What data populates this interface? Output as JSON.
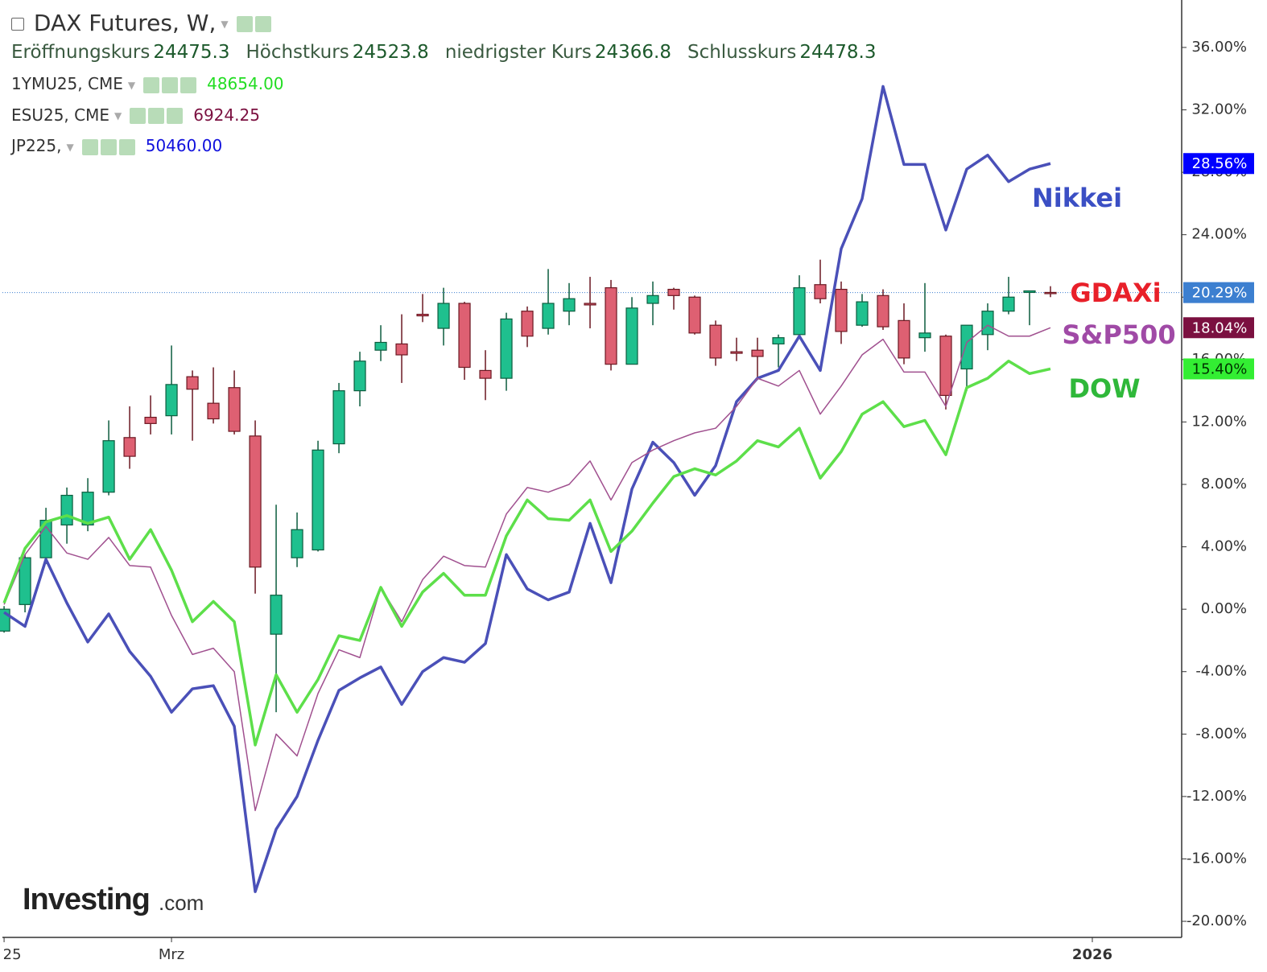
{
  "header": {
    "title": "DAX Futures, W,",
    "ohlc": [
      {
        "label": "Eröffnungskurs",
        "value": "24475.3"
      },
      {
        "label": "Höchstkurs",
        "value": "24523.8"
      },
      {
        "label": "niedrigster Kurs",
        "value": "24366.8"
      },
      {
        "label": "Schlusskurs",
        "value": "24478.3"
      }
    ],
    "overlays": [
      {
        "name": "1YMU25, CME",
        "value": "48654.00",
        "color": "#22dd22"
      },
      {
        "name": "ESU25, CME",
        "value": "6924.25",
        "color": "#7b1040"
      },
      {
        "name": "JP225,",
        "value": "50460.00",
        "color": "#1010dd"
      }
    ]
  },
  "logo": {
    "brand": "Investing",
    "suffix": ".com"
  },
  "chart_data": {
    "type": "candlestick",
    "x": [
      0,
      1,
      2,
      3,
      4,
      5,
      6,
      7,
      8,
      9,
      10,
      11,
      12,
      13,
      14,
      15,
      16,
      17,
      18,
      19,
      20,
      21,
      22,
      23,
      24,
      25,
      26,
      27,
      28,
      29,
      30,
      31,
      32,
      33,
      34,
      35,
      36,
      37,
      38,
      39,
      40,
      41,
      42,
      43,
      44,
      45,
      46,
      47,
      48,
      49,
      50
    ],
    "xlim": [
      -0.08,
      56.27
    ],
    "xticks": [
      {
        "value": 0,
        "label": "25"
      },
      {
        "value": 8,
        "label": "Mrz"
      },
      {
        "value": 52,
        "label": "2026"
      }
    ],
    "ylim": [
      -21.03,
      39.04
    ],
    "yticks": [
      {
        "value": -20,
        "label": "-20.00%"
      },
      {
        "value": -16,
        "label": "-16.00%"
      },
      {
        "value": -12,
        "label": "-12.00%"
      },
      {
        "value": -8,
        "label": "-8.00%"
      },
      {
        "value": -4,
        "label": "-4.00%"
      },
      {
        "value": 0,
        "label": "0.00%"
      },
      {
        "value": 4,
        "label": "4.00%"
      },
      {
        "value": 8,
        "label": "8.00%"
      },
      {
        "value": 12,
        "label": "12.00%"
      },
      {
        "value": 16,
        "label": "16.00%"
      },
      {
        "value": 20,
        "label": "20.00%"
      },
      {
        "value": 24,
        "label": "24.00%"
      },
      {
        "value": 28,
        "label": "28.00%"
      },
      {
        "value": 32,
        "label": "32.00%"
      },
      {
        "value": 36,
        "label": "36.00%"
      }
    ],
    "candles": {
      "name": "GDAXi",
      "name_color": "#e8202a",
      "color_up": "#1fc08e",
      "color_down": "#de6072",
      "label_color": "#3c7fd0",
      "open": [
        -1.4,
        0.3,
        3.3,
        5.4,
        5.4,
        7.5,
        11.0,
        12.3,
        12.4,
        14.9,
        13.2,
        14.2,
        11.1,
        -1.6,
        3.3,
        3.8,
        10.6,
        14.0,
        16.6,
        17.0,
        18.9,
        18.0,
        19.6,
        15.3,
        14.8,
        19.1,
        18.0,
        19.1,
        19.6,
        20.6,
        15.7,
        19.6,
        20.5,
        20.0,
        18.2,
        16.5,
        16.6,
        17.0,
        17.6,
        20.8,
        20.5,
        18.2,
        20.1,
        18.5,
        17.4,
        17.5,
        15.4,
        17.6,
        19.1,
        20.3,
        20.3
      ],
      "high": [
        0.2,
        3.5,
        6.5,
        7.8,
        8.4,
        12.1,
        13.0,
        13.7,
        16.9,
        15.3,
        15.5,
        15.3,
        12.1,
        6.7,
        6.2,
        10.8,
        14.5,
        16.5,
        18.2,
        18.9,
        20.2,
        20.6,
        19.7,
        16.6,
        19.0,
        19.4,
        21.8,
        20.9,
        21.3,
        21.1,
        20.0,
        21.0,
        20.6,
        20.1,
        18.5,
        17.4,
        17.4,
        17.6,
        21.4,
        22.4,
        21.0,
        20.2,
        20.5,
        19.6,
        20.9,
        17.6,
        18.2,
        19.6,
        21.3,
        20.4,
        20.7
      ],
      "low": [
        -1.5,
        -0.2,
        2.9,
        4.2,
        5.0,
        7.3,
        9.0,
        11.2,
        11.2,
        10.8,
        11.9,
        11.2,
        1.0,
        -6.6,
        2.7,
        3.7,
        10.0,
        13.0,
        15.9,
        14.5,
        18.4,
        16.9,
        14.7,
        13.4,
        14.0,
        16.8,
        17.6,
        18.2,
        18.0,
        15.3,
        15.7,
        18.2,
        19.2,
        17.6,
        15.6,
        15.9,
        14.8,
        15.5,
        17.4,
        19.6,
        17.0,
        18.1,
        17.9,
        15.7,
        16.5,
        12.8,
        14.0,
        16.6,
        18.9,
        18.2,
        20.0
      ],
      "close": [
        0.0,
        3.3,
        5.7,
        7.3,
        7.5,
        10.8,
        9.8,
        11.9,
        14.4,
        14.1,
        12.2,
        11.4,
        2.7,
        0.9,
        5.1,
        10.2,
        14.0,
        15.9,
        17.1,
        16.3,
        18.8,
        19.6,
        15.5,
        14.8,
        18.6,
        17.5,
        19.6,
        19.9,
        19.5,
        15.7,
        19.3,
        20.1,
        20.1,
        17.7,
        16.1,
        16.4,
        16.2,
        17.4,
        20.6,
        19.9,
        17.8,
        19.7,
        18.1,
        16.1,
        17.7,
        13.7,
        18.2,
        19.1,
        20.0,
        20.4,
        20.29
      ],
      "value_labels": [
        null,
        null,
        null,
        null,
        null,
        null,
        null,
        null,
        null,
        null,
        null,
        null,
        null,
        null,
        null,
        null,
        null,
        null,
        null,
        null,
        null,
        null,
        null,
        null,
        null,
        null,
        null,
        null,
        null,
        null,
        null,
        null,
        null,
        null,
        null,
        null,
        null,
        null,
        null,
        null,
        null,
        null,
        null,
        null,
        null,
        null,
        null,
        null,
        null,
        null,
        "20.29%"
      ]
    },
    "series": [
      {
        "name": "Nikkei",
        "color": "#4a50b8",
        "name_color": "#3b4fc4",
        "label_color": "#0000ff",
        "width": 3.5,
        "values": [
          -0.2,
          -1.1,
          3.2,
          0.4,
          -2.1,
          -0.3,
          -2.7,
          -4.3,
          -6.6,
          -5.1,
          -4.9,
          -7.5,
          -18.1,
          -14.1,
          -12.0,
          -8.4,
          -5.2,
          -4.4,
          -3.7,
          -6.1,
          -4.0,
          -3.1,
          -3.4,
          -2.2,
          3.5,
          1.3,
          0.6,
          1.1,
          5.5,
          1.7,
          7.7,
          10.7,
          9.4,
          7.3,
          9.2,
          13.3,
          14.8,
          15.3,
          17.5,
          15.3,
          23.1,
          26.3,
          33.5,
          28.5,
          28.5,
          24.3,
          28.2,
          29.1,
          27.4,
          28.2,
          28.56
        ],
        "value_labels": [
          null,
          null,
          null,
          null,
          null,
          null,
          null,
          null,
          null,
          null,
          null,
          null,
          null,
          null,
          null,
          null,
          null,
          null,
          null,
          null,
          null,
          null,
          null,
          null,
          null,
          null,
          null,
          null,
          null,
          null,
          null,
          null,
          null,
          null,
          null,
          null,
          null,
          null,
          null,
          null,
          null,
          null,
          null,
          null,
          null,
          null,
          null,
          null,
          null,
          null,
          "28.56%"
        ]
      },
      {
        "name": "S&P500",
        "color": "#a0508f",
        "name_color": "#a04aa6",
        "label_color": "#7b1040",
        "width": 1.5,
        "values": [
          0.3,
          3.5,
          5.3,
          3.6,
          3.2,
          4.6,
          2.8,
          2.7,
          -0.4,
          -2.9,
          -2.5,
          -4.0,
          -12.9,
          -8.0,
          -9.4,
          -5.4,
          -2.6,
          -3.1,
          1.4,
          -0.8,
          1.9,
          3.4,
          2.8,
          2.7,
          6.1,
          7.8,
          7.5,
          8.0,
          9.5,
          7.0,
          9.4,
          10.2,
          10.8,
          11.3,
          11.6,
          13.0,
          14.8,
          14.3,
          15.3,
          12.5,
          14.3,
          16.3,
          17.3,
          15.2,
          15.2,
          13.0,
          17.1,
          18.2,
          17.5,
          17.5,
          18.04
        ],
        "value_labels": [
          null,
          null,
          null,
          null,
          null,
          null,
          null,
          null,
          null,
          null,
          null,
          null,
          null,
          null,
          null,
          null,
          null,
          null,
          null,
          null,
          null,
          null,
          null,
          null,
          null,
          null,
          null,
          null,
          null,
          null,
          null,
          null,
          null,
          null,
          null,
          null,
          null,
          null,
          null,
          null,
          null,
          null,
          null,
          null,
          null,
          null,
          null,
          null,
          null,
          null,
          "18.04%"
        ]
      },
      {
        "name": "DOW",
        "color": "#5ddf4a",
        "name_color": "#2fb83a",
        "label_color": "#33ee33",
        "width": 3.5,
        "values": [
          0.4,
          3.9,
          5.6,
          6.0,
          5.5,
          5.9,
          3.2,
          5.1,
          2.5,
          -0.8,
          0.5,
          -0.8,
          -8.7,
          -4.2,
          -6.6,
          -4.5,
          -1.7,
          -2.0,
          1.4,
          -1.1,
          1.1,
          2.3,
          0.9,
          0.9,
          4.7,
          7.0,
          5.8,
          5.7,
          7.0,
          3.7,
          5.0,
          6.8,
          8.5,
          9.0,
          8.6,
          9.5,
          10.8,
          10.4,
          11.6,
          8.4,
          10.1,
          12.5,
          13.3,
          11.7,
          12.1,
          9.9,
          14.2,
          14.8,
          15.9,
          15.1,
          15.4
        ],
        "value_labels": [
          null,
          null,
          null,
          null,
          null,
          null,
          null,
          null,
          null,
          null,
          null,
          null,
          null,
          null,
          null,
          null,
          null,
          null,
          null,
          null,
          null,
          null,
          null,
          null,
          null,
          null,
          null,
          null,
          null,
          null,
          null,
          null,
          null,
          null,
          null,
          null,
          null,
          null,
          null,
          null,
          null,
          null,
          null,
          null,
          null,
          null,
          null,
          null,
          null,
          null,
          "15.40%"
        ]
      }
    ]
  }
}
